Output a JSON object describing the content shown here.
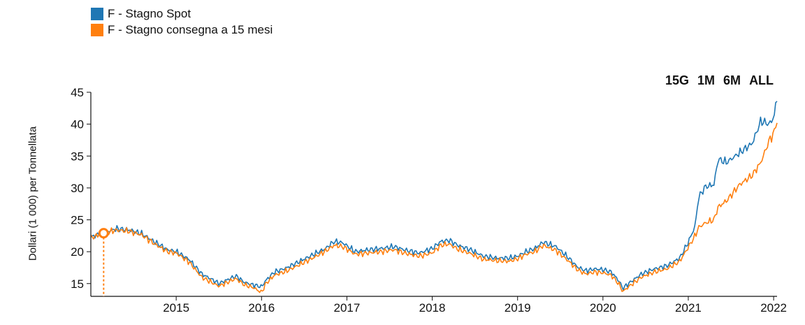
{
  "legend": {
    "items": [
      {
        "label": "F - Stagno Spot",
        "color": "#1f77b4"
      },
      {
        "label": "F - Stagno consegna a 15 mesi",
        "color": "#ff7f0e"
      }
    ]
  },
  "range_buttons": [
    "15G",
    "1M",
    "6M",
    "ALL"
  ],
  "chart_data": {
    "type": "line",
    "title": "",
    "xlabel": "",
    "ylabel": "Dollari (1 000) per Tonnellata",
    "xlim": [
      2014.0,
      2022.04
    ],
    "ylim": [
      13,
      45
    ],
    "x_ticks": [
      2015,
      2016,
      2017,
      2018,
      2019,
      2020,
      2021,
      2022
    ],
    "y_ticks": [
      15,
      20,
      25,
      30,
      35,
      40,
      45
    ],
    "grid": false,
    "legend_position": "top-left",
    "series": [
      {
        "name": "F - Stagno Spot",
        "color": "#1f77b4",
        "x": [
          2014.0,
          2014.15,
          2014.3,
          2014.45,
          2014.6,
          2014.75,
          2014.9,
          2015.0,
          2015.15,
          2015.3,
          2015.4,
          2015.5,
          2015.6,
          2015.7,
          2015.8,
          2015.9,
          2016.0,
          2016.05,
          2016.15,
          2016.3,
          2016.45,
          2016.6,
          2016.75,
          2016.85,
          2016.95,
          2017.1,
          2017.25,
          2017.4,
          2017.55,
          2017.7,
          2017.85,
          2018.0,
          2018.1,
          2018.2,
          2018.3,
          2018.45,
          2018.6,
          2018.75,
          2018.9,
          2019.0,
          2019.1,
          2019.2,
          2019.3,
          2019.45,
          2019.6,
          2019.7,
          2019.8,
          2019.9,
          2020.0,
          2020.1,
          2020.2,
          2020.23,
          2020.3,
          2020.45,
          2020.6,
          2020.75,
          2020.9,
          2021.0,
          2021.08,
          2021.12,
          2021.2,
          2021.3,
          2021.35,
          2021.45,
          2021.6,
          2021.75,
          2021.85,
          2021.95,
          2022.0,
          2022.04
        ],
        "y": [
          22.3,
          23.0,
          23.6,
          23.4,
          22.8,
          21.5,
          20.3,
          20.0,
          18.8,
          16.5,
          15.8,
          15.0,
          15.6,
          16.2,
          15.2,
          14.8,
          14.5,
          15.5,
          16.8,
          17.5,
          18.5,
          19.5,
          20.5,
          21.6,
          21.4,
          20.0,
          20.3,
          20.5,
          20.8,
          20.2,
          19.8,
          20.5,
          21.6,
          21.8,
          21.0,
          20.3,
          19.3,
          19.0,
          19.0,
          19.3,
          20.0,
          20.5,
          21.5,
          20.8,
          19.0,
          17.6,
          17.0,
          17.3,
          17.2,
          16.8,
          15.2,
          14.2,
          15.0,
          16.5,
          17.3,
          17.8,
          19.0,
          21.5,
          24.0,
          28.5,
          30.2,
          30.5,
          34.5,
          34.0,
          35.5,
          37.0,
          40.5,
          40.0,
          41.0,
          44.0
        ]
      },
      {
        "name": "F - Stagno consegna a 15 mesi",
        "color": "#ff7f0e",
        "x": [
          2014.0,
          2014.15,
          2014.3,
          2014.45,
          2014.6,
          2014.75,
          2014.9,
          2015.0,
          2015.15,
          2015.3,
          2015.4,
          2015.5,
          2015.6,
          2015.7,
          2015.8,
          2015.9,
          2016.0,
          2016.05,
          2016.15,
          2016.3,
          2016.45,
          2016.6,
          2016.75,
          2016.85,
          2016.95,
          2017.1,
          2017.25,
          2017.4,
          2017.55,
          2017.7,
          2017.85,
          2018.0,
          2018.1,
          2018.2,
          2018.3,
          2018.45,
          2018.6,
          2018.75,
          2018.9,
          2019.0,
          2019.1,
          2019.2,
          2019.3,
          2019.45,
          2019.6,
          2019.7,
          2019.8,
          2019.9,
          2020.0,
          2020.1,
          2020.2,
          2020.23,
          2020.3,
          2020.45,
          2020.6,
          2020.75,
          2020.9,
          2021.0,
          2021.08,
          2021.12,
          2021.2,
          2021.3,
          2021.35,
          2021.45,
          2021.6,
          2021.75,
          2021.85,
          2021.95,
          2022.0,
          2022.04
        ],
        "y": [
          22.2,
          22.9,
          23.4,
          23.2,
          22.6,
          21.2,
          20.0,
          19.8,
          18.4,
          16.0,
          15.3,
          14.6,
          15.2,
          15.8,
          14.8,
          14.4,
          13.6,
          15.0,
          16.3,
          17.0,
          18.0,
          19.0,
          20.1,
          21.0,
          20.8,
          19.6,
          19.8,
          20.0,
          20.3,
          19.7,
          19.3,
          19.8,
          21.0,
          21.2,
          20.4,
          19.7,
          18.8,
          18.6,
          18.5,
          18.9,
          19.6,
          20.0,
          21.0,
          20.2,
          18.5,
          17.2,
          16.5,
          16.8,
          16.7,
          16.3,
          14.7,
          13.7,
          14.5,
          16.0,
          16.8,
          17.3,
          18.5,
          20.7,
          22.5,
          23.8,
          24.5,
          25.0,
          27.0,
          28.0,
          30.5,
          32.0,
          34.0,
          37.5,
          38.5,
          40.5
        ]
      }
    ]
  }
}
